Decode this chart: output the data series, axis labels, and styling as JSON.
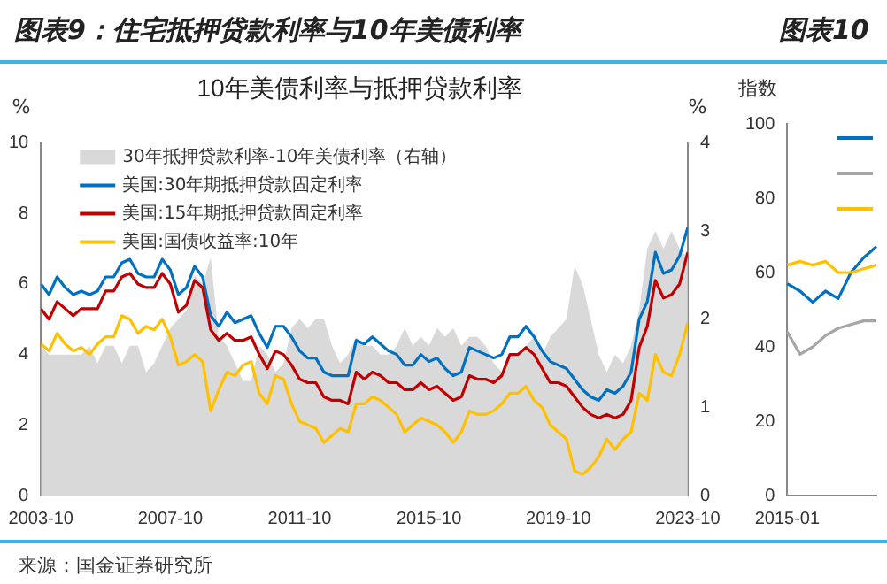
{
  "chart_data": [
    {
      "type": "line",
      "title": "图表9：住宅抵押贷款利率与10年美债利率",
      "subtitle": "10年美债利率与抵押贷款利率",
      "ylabel": "%",
      "y2label": "%",
      "x": [
        "2003-10",
        "2004-01",
        "2004-04",
        "2004-07",
        "2004-10",
        "2005-01",
        "2005-04",
        "2005-07",
        "2005-10",
        "2006-01",
        "2006-04",
        "2006-07",
        "2006-10",
        "2007-01",
        "2007-04",
        "2007-07",
        "2007-10",
        "2008-01",
        "2008-04",
        "2008-07",
        "2008-10",
        "2009-01",
        "2009-04",
        "2009-07",
        "2009-10",
        "2010-01",
        "2010-04",
        "2010-07",
        "2010-10",
        "2011-01",
        "2011-04",
        "2011-07",
        "2011-10",
        "2012-01",
        "2012-04",
        "2012-07",
        "2012-10",
        "2013-01",
        "2013-04",
        "2013-07",
        "2013-10",
        "2014-01",
        "2014-04",
        "2014-07",
        "2014-10",
        "2015-01",
        "2015-04",
        "2015-07",
        "2015-10",
        "2016-01",
        "2016-04",
        "2016-07",
        "2016-10",
        "2017-01",
        "2017-04",
        "2017-07",
        "2017-10",
        "2018-01",
        "2018-04",
        "2018-07",
        "2018-10",
        "2019-01",
        "2019-04",
        "2019-07",
        "2019-10",
        "2020-01",
        "2020-04",
        "2020-07",
        "2020-10",
        "2021-01",
        "2021-04",
        "2021-07",
        "2021-10",
        "2022-01",
        "2022-04",
        "2022-07",
        "2022-10",
        "2023-01",
        "2023-04",
        "2023-07",
        "2023-10"
      ],
      "series": [
        {
          "name": "30年抵押贷款利率-10年美债利率（右轴）",
          "type": "area",
          "axis": "y2",
          "color": "#d9d9d9",
          "values": [
            1.7,
            1.6,
            1.6,
            1.6,
            1.6,
            1.6,
            1.7,
            1.5,
            1.7,
            1.7,
            1.5,
            1.7,
            1.7,
            1.4,
            1.5,
            1.7,
            1.9,
            2.0,
            2.1,
            2.5,
            2.4,
            2.7,
            1.8,
            1.7,
            1.5,
            1.3,
            1.3,
            1.7,
            1.6,
            1.4,
            1.5,
            1.9,
            2.0,
            1.9,
            2.0,
            2.0,
            1.7,
            1.5,
            1.6,
            1.8,
            1.7,
            1.7,
            1.6,
            1.6,
            1.7,
            1.9,
            1.7,
            1.8,
            1.7,
            1.9,
            1.8,
            1.9,
            1.7,
            1.8,
            1.8,
            1.7,
            1.5,
            1.4,
            1.6,
            1.6,
            1.7,
            1.8,
            1.6,
            1.8,
            1.9,
            2.0,
            2.6,
            2.4,
            2.0,
            1.6,
            1.4,
            1.6,
            1.5,
            1.7,
            2.1,
            2.8,
            3.0,
            2.8,
            3.0,
            2.8,
            2.7
          ]
        },
        {
          "name": "美国:30年期抵押贷款固定利率",
          "type": "line",
          "color": "#0070c0",
          "values": [
            6.0,
            5.7,
            6.2,
            5.9,
            5.7,
            5.8,
            5.7,
            5.8,
            6.2,
            6.2,
            6.6,
            6.7,
            6.3,
            6.2,
            6.2,
            6.7,
            6.4,
            5.7,
            5.9,
            6.5,
            6.2,
            5.1,
            4.8,
            5.2,
            4.9,
            5.0,
            5.1,
            4.6,
            4.2,
            4.8,
            4.8,
            4.5,
            4.1,
            3.9,
            3.9,
            3.5,
            3.4,
            3.4,
            3.4,
            4.4,
            4.3,
            4.5,
            4.3,
            4.1,
            4.0,
            3.7,
            3.7,
            4.0,
            3.8,
            3.9,
            3.6,
            3.4,
            3.5,
            4.2,
            4.1,
            4.0,
            3.9,
            4.0,
            4.5,
            4.5,
            4.8,
            4.5,
            4.1,
            3.8,
            3.7,
            3.6,
            3.3,
            3.0,
            2.8,
            2.7,
            3.0,
            2.9,
            3.1,
            3.5,
            5.0,
            5.5,
            6.9,
            6.3,
            6.4,
            6.8,
            7.6
          ]
        },
        {
          "name": "美国:15年期抵押贷款固定利率",
          "type": "line",
          "color": "#c00000",
          "values": [
            5.3,
            5.0,
            5.5,
            5.3,
            5.1,
            5.3,
            5.3,
            5.3,
            5.8,
            5.8,
            6.2,
            6.3,
            6.0,
            5.9,
            5.9,
            6.3,
            6.0,
            5.2,
            5.4,
            6.1,
            5.9,
            4.7,
            4.4,
            4.6,
            4.4,
            4.4,
            4.5,
            4.0,
            3.6,
            4.1,
            4.0,
            3.7,
            3.3,
            3.2,
            3.2,
            2.8,
            2.7,
            2.7,
            2.6,
            3.5,
            3.3,
            3.5,
            3.4,
            3.2,
            3.2,
            3.0,
            3.0,
            3.2,
            3.0,
            3.1,
            2.9,
            2.7,
            2.8,
            3.4,
            3.3,
            3.3,
            3.2,
            3.4,
            4.0,
            4.0,
            4.2,
            4.0,
            3.6,
            3.2,
            3.2,
            3.1,
            2.8,
            2.5,
            2.3,
            2.2,
            2.3,
            2.2,
            2.3,
            2.7,
            4.2,
            4.8,
            6.1,
            5.6,
            5.7,
            6.0,
            6.9
          ]
        },
        {
          "name": "美国:国债收益率:10年",
          "type": "line",
          "color": "#ffc000",
          "values": [
            4.3,
            4.1,
            4.6,
            4.3,
            4.1,
            4.2,
            4.0,
            4.3,
            4.5,
            4.5,
            5.1,
            5.0,
            4.6,
            4.8,
            4.7,
            5.0,
            4.5,
            3.7,
            3.8,
            4.0,
            3.8,
            2.4,
            3.0,
            3.5,
            3.4,
            3.7,
            3.8,
            2.9,
            2.6,
            3.4,
            3.3,
            2.6,
            2.1,
            2.0,
            1.9,
            1.5,
            1.7,
            1.9,
            1.8,
            2.6,
            2.6,
            2.8,
            2.7,
            2.5,
            2.3,
            1.8,
            2.0,
            2.2,
            2.1,
            2.0,
            1.8,
            1.5,
            1.8,
            2.4,
            2.3,
            2.3,
            2.4,
            2.6,
            2.9,
            2.9,
            3.1,
            2.7,
            2.5,
            2.0,
            1.8,
            1.6,
            0.7,
            0.6,
            0.8,
            1.1,
            1.6,
            1.3,
            1.6,
            1.8,
            2.9,
            2.7,
            4.0,
            3.5,
            3.4,
            4.0,
            4.9
          ]
        }
      ],
      "xlim": [
        "2003-10",
        "2023-10"
      ],
      "xticks": [
        "2003-10",
        "2007-10",
        "2011-10",
        "2015-10",
        "2019-10",
        "2023-10"
      ],
      "ylim": [
        0,
        10
      ],
      "yticks": [
        0,
        2,
        4,
        6,
        8,
        10
      ],
      "y2lim": [
        0,
        4
      ],
      "y2ticks": [
        0,
        1,
        2,
        3,
        4
      ],
      "grid": false,
      "legend": "top left",
      "annotations": [
        "来源：国金证券研究所"
      ]
    },
    {
      "type": "line",
      "title": "图表10",
      "ylabel": "指数",
      "categories": [
        "2015-01",
        null,
        null,
        null,
        null,
        null,
        null,
        null
      ],
      "series": [
        {
          "color": "#0070c0",
          "values": [
            57,
            55,
            52,
            55,
            53,
            60,
            64,
            67
          ]
        },
        {
          "color": "#a6a6a6",
          "values": [
            44,
            38,
            40,
            43,
            45,
            46,
            47,
            47
          ]
        },
        {
          "color": "#ffc000",
          "values": [
            62,
            63,
            62,
            63,
            60,
            60,
            61,
            62
          ]
        }
      ],
      "ylim": [
        0,
        100
      ],
      "yticks": [
        0,
        20,
        40,
        60,
        80,
        100
      ],
      "grid": false,
      "legend": "top right"
    }
  ]
}
